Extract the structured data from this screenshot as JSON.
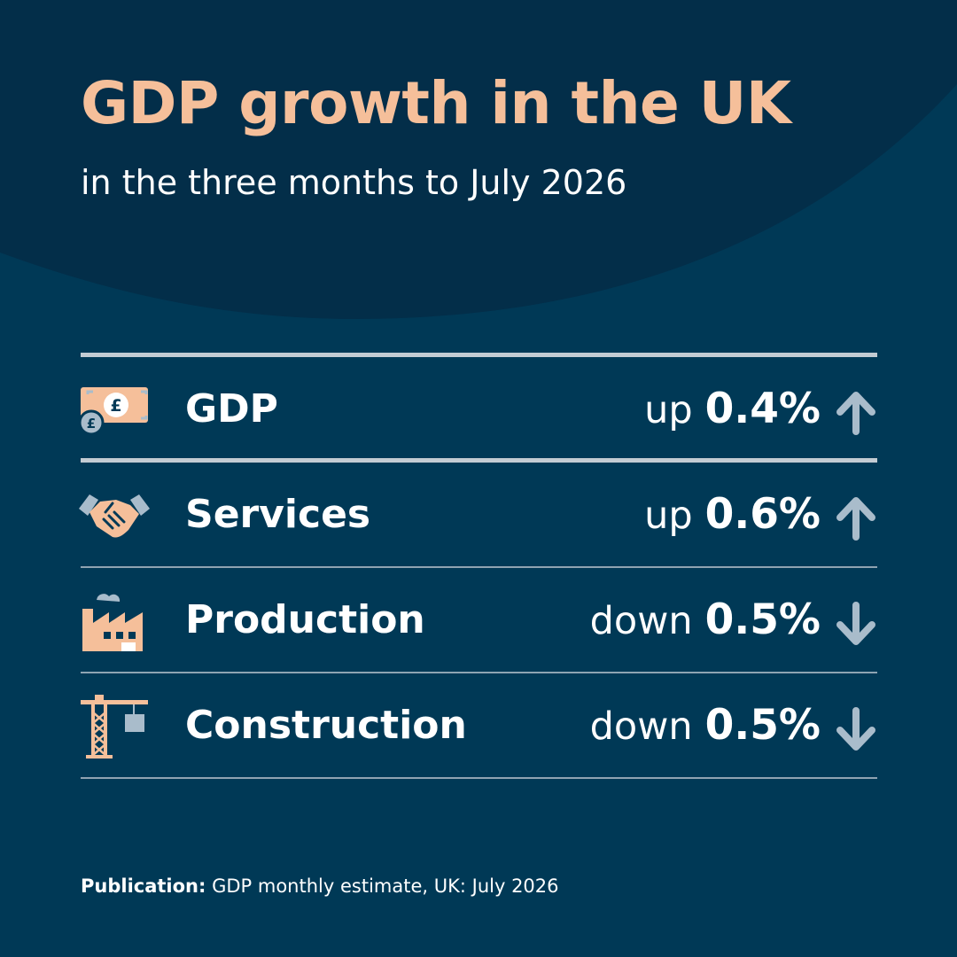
{
  "title": "GDP growth in the UK",
  "subtitle": "in the three months to July 2026",
  "colors": {
    "background": "#003956",
    "header_arc": "#032e49",
    "title": "#f5bf9a",
    "icon_fill": "#f5bf9a",
    "icon_accent": "#a9bccb",
    "arrow": "#a9bccb"
  },
  "rows": [
    {
      "icon": "pound-banknote-icon",
      "label": "GDP",
      "direction": "up",
      "value": "0.4%",
      "arrow": "arrow-up-icon"
    },
    {
      "icon": "handshake-icon",
      "label": "Services",
      "direction": "up",
      "value": "0.6%",
      "arrow": "arrow-up-icon"
    },
    {
      "icon": "factory-icon",
      "label": "Production",
      "direction": "down",
      "value": "0.5%",
      "arrow": "arrow-down-icon"
    },
    {
      "icon": "crane-icon",
      "label": "Construction",
      "direction": "down",
      "value": "0.5%",
      "arrow": "arrow-down-icon"
    }
  ],
  "footer": {
    "label": "Publication:",
    "text": "GDP monthly estimate, UK: July 2026"
  }
}
